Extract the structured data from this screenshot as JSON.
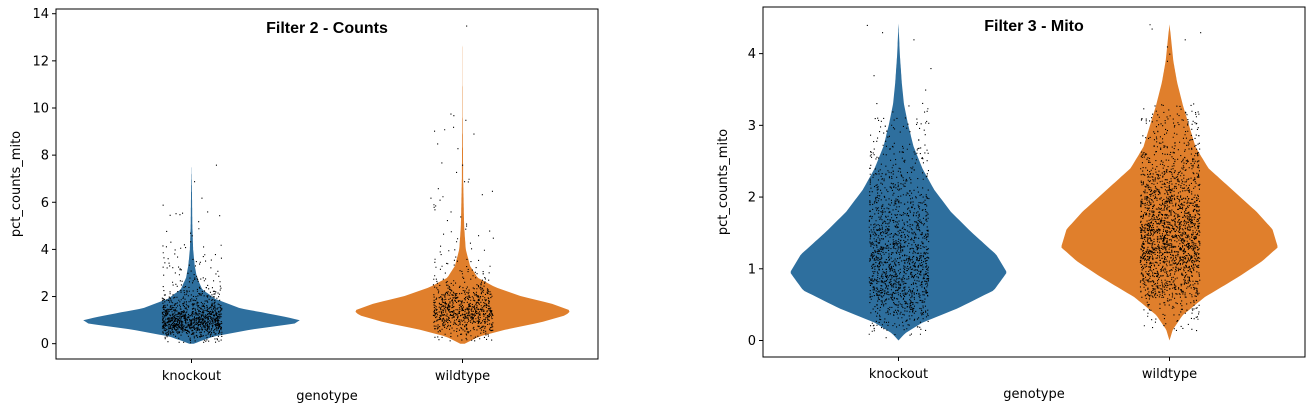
{
  "chart_data": [
    {
      "type": "violin",
      "title": "Filter 2 - Counts",
      "xlabel": "genotype",
      "ylabel": "pct_counts_mito",
      "categories": [
        "knockout",
        "wildtype"
      ],
      "ylim": [
        -0.65,
        14.2
      ],
      "yticks": [
        0,
        2,
        4,
        6,
        8,
        10,
        12,
        14
      ],
      "grid": false,
      "jitter_points": true,
      "colors": [
        "#2e6f9e",
        "#e07f2c"
      ],
      "series": [
        {
          "category": "knockout",
          "color": "#2e6f9e",
          "min": 0.0,
          "max": 7.6,
          "median": 1.0,
          "profile": [
            [
              0.0,
              0.02
            ],
            [
              0.3,
              0.2
            ],
            [
              0.6,
              0.55
            ],
            [
              0.85,
              0.95
            ],
            [
              1.0,
              1.0
            ],
            [
              1.2,
              0.8
            ],
            [
              1.5,
              0.45
            ],
            [
              1.9,
              0.22
            ],
            [
              2.3,
              0.1
            ],
            [
              2.8,
              0.05
            ],
            [
              3.3,
              0.03
            ],
            [
              4.0,
              0.015
            ],
            [
              5.0,
              0.008
            ],
            [
              6.5,
              0.004
            ],
            [
              7.6,
              0.0
            ]
          ],
          "n_points": 1100,
          "outliers": [
            7.6,
            6.9,
            6.2,
            5.9,
            5.2,
            4.9,
            4.6,
            4.2,
            4.0
          ]
        },
        {
          "category": "wildtype",
          "color": "#e07f2c",
          "min": 0.0,
          "max": 13.5,
          "median": 1.4,
          "profile": [
            [
              0.0,
              0.02
            ],
            [
              0.3,
              0.15
            ],
            [
              0.6,
              0.4
            ],
            [
              0.9,
              0.72
            ],
            [
              1.2,
              0.95
            ],
            [
              1.4,
              1.0
            ],
            [
              1.7,
              0.82
            ],
            [
              2.0,
              0.55
            ],
            [
              2.4,
              0.3
            ],
            [
              2.8,
              0.14
            ],
            [
              3.3,
              0.07
            ],
            [
              4.0,
              0.03
            ],
            [
              5.0,
              0.015
            ],
            [
              7.0,
              0.006
            ],
            [
              9.8,
              0.002
            ],
            [
              13.5,
              0.0
            ]
          ],
          "n_points": 1500,
          "outliers": [
            13.5,
            9.7,
            9.5,
            9.2,
            9.1,
            8.3,
            7.6,
            6.9,
            6.6,
            6.2,
            5.7,
            5.4,
            5.1,
            4.8,
            4.5
          ]
        }
      ]
    },
    {
      "type": "violin",
      "title": "Filter 3 - Mito",
      "xlabel": "genotype",
      "ylabel": "pct_counts_mito",
      "categories": [
        "knockout",
        "wildtype"
      ],
      "ylim": [
        -0.23,
        4.65
      ],
      "yticks": [
        0,
        1,
        2,
        3,
        4
      ],
      "grid": false,
      "jitter_points": true,
      "colors": [
        "#2e6f9e",
        "#e07f2c"
      ],
      "series": [
        {
          "category": "knockout",
          "color": "#2e6f9e",
          "min": 0.0,
          "max": 4.42,
          "median": 1.0,
          "profile": [
            [
              0.0,
              0.0
            ],
            [
              0.1,
              0.06
            ],
            [
              0.25,
              0.22
            ],
            [
              0.45,
              0.55
            ],
            [
              0.7,
              0.88
            ],
            [
              0.95,
              1.0
            ],
            [
              1.2,
              0.9
            ],
            [
              1.5,
              0.68
            ],
            [
              1.8,
              0.48
            ],
            [
              2.1,
              0.33
            ],
            [
              2.4,
              0.22
            ],
            [
              2.7,
              0.14
            ],
            [
              3.0,
              0.09
            ],
            [
              3.3,
              0.05
            ],
            [
              3.6,
              0.03
            ],
            [
              4.0,
              0.012
            ],
            [
              4.42,
              0.0
            ]
          ],
          "n_points": 1500,
          "outliers": [
            4.4,
            4.3,
            4.2,
            3.8,
            3.7,
            3.5
          ]
        },
        {
          "category": "wildtype",
          "color": "#e07f2c",
          "min": 0.0,
          "max": 4.41,
          "median": 1.3,
          "profile": [
            [
              0.0,
              0.0
            ],
            [
              0.15,
              0.03
            ],
            [
              0.35,
              0.12
            ],
            [
              0.6,
              0.32
            ],
            [
              0.9,
              0.65
            ],
            [
              1.1,
              0.85
            ],
            [
              1.3,
              1.0
            ],
            [
              1.55,
              0.95
            ],
            [
              1.8,
              0.8
            ],
            [
              2.1,
              0.58
            ],
            [
              2.4,
              0.36
            ],
            [
              2.7,
              0.24
            ],
            [
              3.0,
              0.18
            ],
            [
              3.3,
              0.12
            ],
            [
              3.6,
              0.07
            ],
            [
              3.9,
              0.035
            ],
            [
              4.2,
              0.015
            ],
            [
              4.41,
              0.0
            ]
          ],
          "n_points": 2200,
          "outliers": [
            4.41,
            4.35,
            4.3,
            4.2,
            4.1,
            4.0,
            3.9
          ]
        }
      ]
    }
  ]
}
